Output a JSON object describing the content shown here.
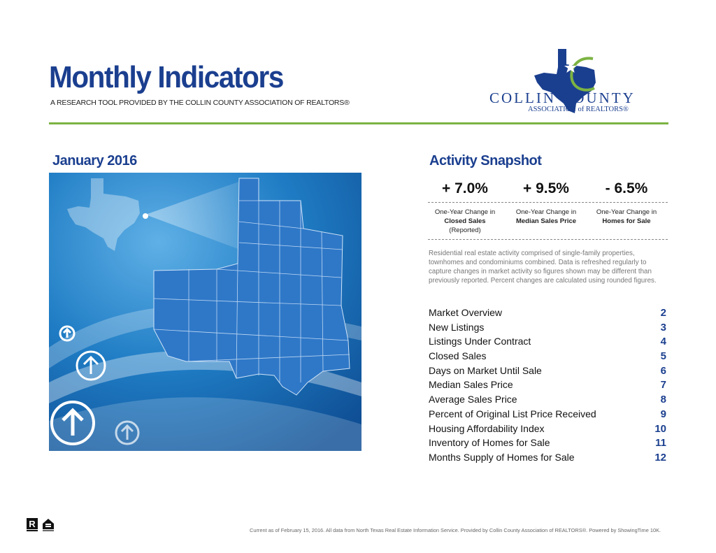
{
  "header": {
    "title": "Monthly Indicators",
    "subtitle": "A RESEARCH TOOL PROVIDED BY THE COLLIN COUNTY ASSOCIATION OF REALTORS®"
  },
  "logo": {
    "name": "COLLIN COUNTY",
    "sub": "ASSOCIATION of REALTORS®"
  },
  "month": "January 2016",
  "snapshot": {
    "title": "Activity Snapshot",
    "stats": [
      {
        "value": "+ 7.0%",
        "line1": "One-Year Change in",
        "line2": "Closed Sales",
        "line3": "(Reported)"
      },
      {
        "value": "+ 9.5%",
        "line1": "One-Year Change in",
        "line2": "Median Sales Price",
        "line3": ""
      },
      {
        "value": "- 6.5%",
        "line1": "One-Year Change in",
        "line2": "Homes for Sale",
        "line3": ""
      }
    ],
    "description": "Residential real estate activity comprised of single-family properties, townhomes and condominiums combined. Data is refreshed regularly to capture changes in market activity so figures shown may be different than previously reported. Percent changes are calculated using rounded figures."
  },
  "toc": [
    {
      "label": "Market Overview",
      "page": "2"
    },
    {
      "label": "New Listings",
      "page": "3"
    },
    {
      "label": "Listings Under Contract",
      "page": "4"
    },
    {
      "label": "Closed Sales",
      "page": "5"
    },
    {
      "label": "Days on Market Until Sale",
      "page": "6"
    },
    {
      "label": "Median Sales Price",
      "page": "7"
    },
    {
      "label": "Average Sales Price",
      "page": "8"
    },
    {
      "label": "Percent of Original List Price Received",
      "page": "9"
    },
    {
      "label": "Housing Affordability Index",
      "page": "10"
    },
    {
      "label": "Inventory of Homes for Sale",
      "page": "11"
    },
    {
      "label": "Months Supply of Homes for Sale",
      "page": "12"
    }
  ],
  "footer": "Current as of February 15, 2016. All data from North Texas Real Estate Information Service. Provided by Collin County Association of REALTORS®. Powered by ShowingTime 10K.",
  "colors": {
    "brand_blue": "#1b3f8f",
    "accent_green": "#7cb342"
  }
}
